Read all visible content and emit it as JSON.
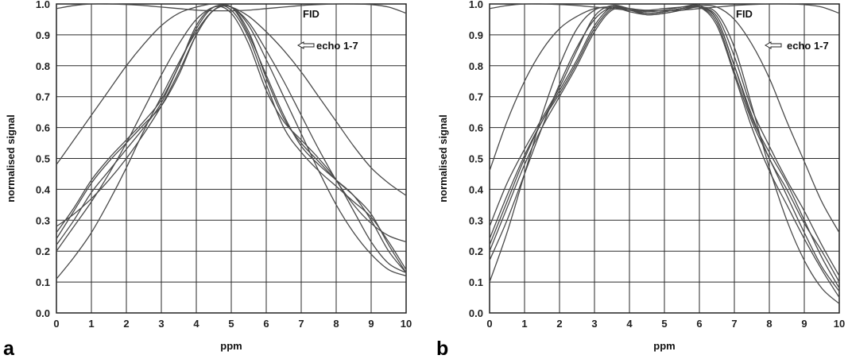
{
  "figure": {
    "panels": [
      {
        "letter": "a"
      },
      {
        "letter": "b"
      }
    ]
  },
  "chart_data": [
    {
      "type": "line",
      "panel": "a",
      "xlabel": "ppm",
      "ylabel": "normalised signal",
      "xlim": [
        0,
        10
      ],
      "ylim": [
        0.0,
        1.0
      ],
      "x_ticks": [
        "0",
        "1",
        "2",
        "3",
        "4",
        "5",
        "6",
        "7",
        "8",
        "9",
        "10"
      ],
      "y_ticks": [
        "0.0",
        "0.1",
        "0.2",
        "0.3",
        "0.4",
        "0.5",
        "0.6",
        "0.7",
        "0.8",
        "0.9",
        "1.0"
      ],
      "grid": true,
      "annotations": [
        {
          "text": "FID"
        },
        {
          "text": "echo 1-7"
        }
      ],
      "series": [
        {
          "x": [
            0,
            0.5,
            1,
            1.5,
            2,
            2.5,
            3,
            3.5,
            4,
            4.5,
            5,
            5.5,
            6,
            6.5,
            7,
            7.5,
            8,
            8.5,
            9,
            9.5,
            10
          ],
          "y": [
            0.985,
            0.995,
            1.0,
            1.0,
            0.998,
            0.995,
            0.99,
            0.985,
            0.98,
            0.978,
            0.978,
            0.98,
            0.985,
            0.99,
            0.995,
            0.998,
            1.0,
            1.0,
            0.998,
            0.99,
            0.97
          ]
        },
        {
          "x": [
            0,
            0.5,
            1,
            1.5,
            2,
            2.5,
            3,
            3.5,
            4,
            4.5,
            5,
            5.5,
            6,
            6.5,
            7,
            7.5,
            8,
            8.5,
            9,
            9.5,
            10
          ],
          "y": [
            0.48,
            0.56,
            0.64,
            0.72,
            0.8,
            0.87,
            0.93,
            0.97,
            0.99,
            1.0,
            0.99,
            0.96,
            0.91,
            0.85,
            0.78,
            0.7,
            0.62,
            0.54,
            0.47,
            0.42,
            0.38
          ]
        },
        {
          "x": [
            0,
            0.5,
            1,
            1.5,
            2,
            2.5,
            3,
            3.5,
            4,
            4.5,
            5,
            5.5,
            6,
            6.5,
            7,
            7.5,
            8,
            8.5,
            9,
            9.5,
            10
          ],
          "y": [
            0.2,
            0.28,
            0.36,
            0.45,
            0.55,
            0.66,
            0.77,
            0.87,
            0.95,
            0.99,
            0.99,
            0.94,
            0.85,
            0.75,
            0.64,
            0.53,
            0.43,
            0.35,
            0.29,
            0.25,
            0.23
          ]
        },
        {
          "x": [
            0,
            0.5,
            1,
            1.5,
            2,
            2.5,
            3,
            3.5,
            4,
            4.5,
            5,
            5.5,
            6,
            6.5,
            7,
            7.5,
            8,
            8.5,
            9,
            9.5,
            10
          ],
          "y": [
            0.11,
            0.18,
            0.26,
            0.36,
            0.47,
            0.59,
            0.7,
            0.81,
            0.91,
            0.98,
            0.99,
            0.93,
            0.82,
            0.7,
            0.58,
            0.46,
            0.35,
            0.26,
            0.19,
            0.14,
            0.12
          ]
        },
        {
          "x": [
            0,
            0.5,
            1,
            1.5,
            2,
            2.5,
            3,
            3.5,
            4,
            4.5,
            5,
            5.5,
            6,
            6.5,
            7,
            7.5,
            8,
            8.5,
            9,
            9.5,
            10
          ],
          "y": [
            0.28,
            0.32,
            0.37,
            0.43,
            0.5,
            0.58,
            0.67,
            0.78,
            0.9,
            0.98,
            0.99,
            0.91,
            0.76,
            0.63,
            0.55,
            0.49,
            0.43,
            0.38,
            0.32,
            0.22,
            0.13
          ]
        },
        {
          "x": [
            0,
            0.5,
            1,
            1.5,
            2,
            2.5,
            3,
            3.5,
            4,
            4.5,
            5,
            5.5,
            6,
            6.5,
            7,
            7.5,
            8,
            8.5,
            9,
            9.5,
            10
          ],
          "y": [
            0.22,
            0.3,
            0.39,
            0.46,
            0.53,
            0.6,
            0.68,
            0.8,
            0.92,
            0.99,
            0.98,
            0.89,
            0.74,
            0.6,
            0.52,
            0.46,
            0.41,
            0.36,
            0.31,
            0.23,
            0.14
          ]
        },
        {
          "x": [
            0,
            0.5,
            1,
            1.5,
            2,
            2.5,
            3,
            3.5,
            4,
            4.5,
            5,
            5.5,
            6,
            6.5,
            7,
            7.5,
            8,
            8.5,
            9,
            9.5,
            10
          ],
          "y": [
            0.26,
            0.34,
            0.43,
            0.5,
            0.56,
            0.62,
            0.69,
            0.8,
            0.93,
            0.99,
            0.97,
            0.87,
            0.72,
            0.62,
            0.56,
            0.5,
            0.43,
            0.33,
            0.23,
            0.16,
            0.13
          ]
        },
        {
          "x": [
            0,
            0.5,
            1,
            1.5,
            2,
            2.5,
            3,
            3.5,
            4,
            4.5,
            5,
            5.5,
            6,
            6.5,
            7,
            7.5,
            8,
            8.5,
            9,
            9.5,
            10
          ],
          "y": [
            0.24,
            0.33,
            0.42,
            0.49,
            0.55,
            0.61,
            0.67,
            0.77,
            0.9,
            0.98,
            0.99,
            0.9,
            0.77,
            0.64,
            0.54,
            0.48,
            0.43,
            0.38,
            0.3,
            0.2,
            0.13
          ]
        }
      ]
    },
    {
      "type": "line",
      "panel": "b",
      "xlabel": "ppm",
      "ylabel": "normalised signal",
      "xlim": [
        0,
        10
      ],
      "ylim": [
        0.0,
        1.0
      ],
      "x_ticks": [
        "0",
        "1",
        "2",
        "3",
        "4",
        "5",
        "6",
        "7",
        "8",
        "9",
        "10"
      ],
      "y_ticks": [
        "0.0",
        "0.1",
        "0.2",
        "0.3",
        "0.4",
        "0.5",
        "0.6",
        "0.7",
        "0.8",
        "0.9",
        "1.0"
      ],
      "grid": true,
      "annotations": [
        {
          "text": "FID"
        },
        {
          "text": "echo 1-7"
        }
      ],
      "series": [
        {
          "x": [
            0,
            0.5,
            1,
            1.5,
            2,
            2.5,
            3,
            3.5,
            4,
            4.5,
            5,
            5.5,
            6,
            6.5,
            7,
            7.5,
            8,
            8.5,
            9,
            9.5,
            10
          ],
          "y": [
            0.985,
            0.995,
            1.0,
            1.0,
            0.998,
            0.995,
            0.99,
            0.985,
            0.98,
            0.978,
            0.978,
            0.98,
            0.985,
            0.99,
            0.995,
            0.998,
            1.0,
            1.0,
            0.998,
            0.99,
            0.97
          ]
        },
        {
          "x": [
            0,
            0.5,
            1,
            1.5,
            2,
            2.5,
            3,
            3.5,
            4,
            4.5,
            5,
            5.5,
            6,
            6.5,
            7,
            7.5,
            8,
            8.5,
            9,
            9.5,
            10
          ],
          "y": [
            0.46,
            0.62,
            0.75,
            0.85,
            0.92,
            0.96,
            0.985,
            0.99,
            0.985,
            0.98,
            0.985,
            0.99,
            0.995,
            0.99,
            0.95,
            0.87,
            0.76,
            0.62,
            0.49,
            0.36,
            0.26
          ]
        },
        {
          "x": [
            0,
            0.5,
            1,
            1.5,
            2,
            2.5,
            3,
            3.5,
            4,
            4.5,
            5,
            5.5,
            6,
            6.5,
            7,
            7.5,
            8,
            8.5,
            9,
            9.5,
            10
          ],
          "y": [
            0.1,
            0.26,
            0.45,
            0.64,
            0.8,
            0.92,
            0.98,
            0.99,
            0.975,
            0.965,
            0.97,
            0.98,
            0.99,
            0.97,
            0.86,
            0.67,
            0.47,
            0.3,
            0.17,
            0.08,
            0.03
          ]
        },
        {
          "x": [
            0,
            0.5,
            1,
            1.5,
            2,
            2.5,
            3,
            3.5,
            4,
            4.5,
            5,
            5.5,
            6,
            6.5,
            7,
            7.5,
            8,
            8.5,
            9,
            9.5,
            10
          ],
          "y": [
            0.28,
            0.42,
            0.53,
            0.63,
            0.73,
            0.85,
            0.96,
            0.995,
            0.985,
            0.975,
            0.98,
            0.99,
            0.995,
            0.95,
            0.8,
            0.64,
            0.5,
            0.4,
            0.29,
            0.2,
            0.1
          ]
        },
        {
          "x": [
            0,
            0.5,
            1,
            1.5,
            2,
            2.5,
            3,
            3.5,
            4,
            4.5,
            5,
            5.5,
            6,
            6.5,
            7,
            7.5,
            8,
            8.5,
            9,
            9.5,
            10
          ],
          "y": [
            0.17,
            0.3,
            0.45,
            0.6,
            0.74,
            0.86,
            0.95,
            0.99,
            0.985,
            0.97,
            0.975,
            0.985,
            0.99,
            0.94,
            0.78,
            0.62,
            0.5,
            0.38,
            0.26,
            0.15,
            0.07
          ]
        },
        {
          "x": [
            0,
            0.5,
            1,
            1.5,
            2,
            2.5,
            3,
            3.5,
            4,
            4.5,
            5,
            5.5,
            6,
            6.5,
            7,
            7.5,
            8,
            8.5,
            9,
            9.5,
            10
          ],
          "y": [
            0.22,
            0.36,
            0.5,
            0.62,
            0.72,
            0.82,
            0.93,
            0.99,
            0.98,
            0.97,
            0.975,
            0.985,
            0.99,
            0.93,
            0.77,
            0.6,
            0.46,
            0.35,
            0.24,
            0.14,
            0.05
          ]
        },
        {
          "x": [
            0,
            0.5,
            1,
            1.5,
            2,
            2.5,
            3,
            3.5,
            4,
            4.5,
            5,
            5.5,
            6,
            6.5,
            7,
            7.5,
            8,
            8.5,
            9,
            9.5,
            10
          ],
          "y": [
            0.24,
            0.38,
            0.51,
            0.62,
            0.71,
            0.81,
            0.92,
            0.985,
            0.98,
            0.965,
            0.97,
            0.98,
            0.99,
            0.95,
            0.8,
            0.63,
            0.52,
            0.42,
            0.3,
            0.18,
            0.08
          ]
        },
        {
          "x": [
            0,
            0.5,
            1,
            1.5,
            2,
            2.5,
            3,
            3.5,
            4,
            4.5,
            5,
            5.5,
            6,
            6.5,
            7,
            7.5,
            8,
            8.5,
            9,
            9.5,
            10
          ],
          "y": [
            0.2,
            0.34,
            0.48,
            0.6,
            0.7,
            0.8,
            0.91,
            0.98,
            0.98,
            0.97,
            0.975,
            0.985,
            0.99,
            0.96,
            0.83,
            0.66,
            0.54,
            0.43,
            0.33,
            0.22,
            0.12
          ]
        }
      ]
    }
  ],
  "colors": {
    "axis": "#222222",
    "grid": "#2a2a2a",
    "curve": "#4a4a4a",
    "background": "#ffffff"
  }
}
